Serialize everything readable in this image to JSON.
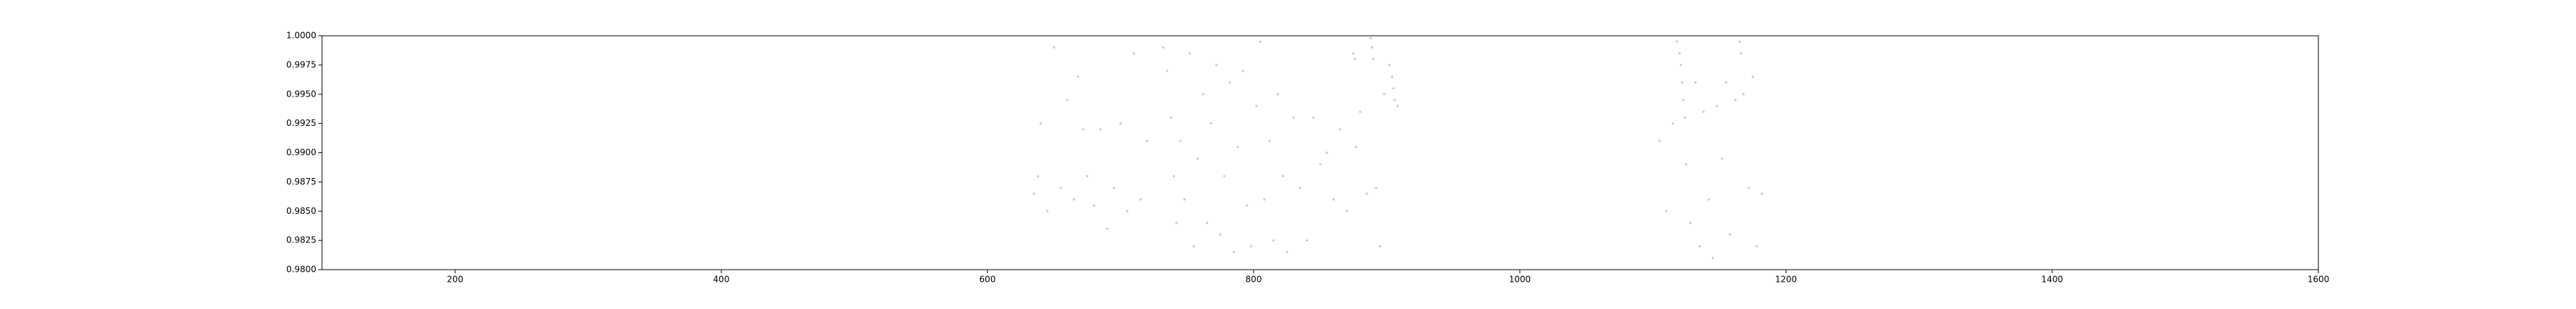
{
  "chart_data": {
    "type": "scatter",
    "color": "#1f77b4",
    "x": [
      635,
      638,
      640,
      645,
      650,
      655,
      660,
      665,
      668,
      672,
      675,
      680,
      685,
      690,
      695,
      700,
      705,
      710,
      715,
      720,
      732,
      735,
      738,
      740,
      742,
      745,
      748,
      752,
      755,
      758,
      762,
      765,
      768,
      772,
      775,
      778,
      782,
      785,
      788,
      792,
      795,
      798,
      802,
      805,
      808,
      812,
      815,
      818,
      822,
      825,
      830,
      835,
      840,
      845,
      850,
      855,
      860,
      865,
      870,
      875,
      876,
      877,
      880,
      885,
      888,
      889,
      890,
      892,
      895,
      898,
      902,
      904,
      905,
      906,
      908,
      1105,
      1110,
      1115,
      1118,
      1120,
      1121,
      1122,
      1123,
      1124,
      1125,
      1128,
      1132,
      1135,
      1138,
      1142,
      1145,
      1148,
      1152,
      1155,
      1158,
      1162,
      1165,
      1166,
      1168,
      1172,
      1175,
      1178,
      1182
    ],
    "values": [
      0.9865,
      0.988,
      0.9925,
      0.985,
      0.999,
      0.987,
      0.9945,
      0.986,
      0.9965,
      0.992,
      0.988,
      0.9855,
      0.992,
      0.9835,
      0.987,
      0.9925,
      0.985,
      0.9985,
      0.986,
      0.991,
      0.999,
      0.997,
      0.993,
      0.988,
      0.984,
      0.991,
      0.986,
      0.9985,
      0.982,
      0.9895,
      0.995,
      0.984,
      0.9925,
      0.9975,
      0.983,
      0.988,
      0.996,
      0.9815,
      0.9905,
      0.997,
      0.9855,
      0.982,
      0.994,
      0.9995,
      0.986,
      0.991,
      0.9825,
      0.995,
      0.988,
      0.9815,
      0.993,
      0.987,
      0.9825,
      0.993,
      0.989,
      0.99,
      0.986,
      0.992,
      0.985,
      0.9985,
      0.998,
      0.9905,
      0.9935,
      0.9865,
      0.9998,
      0.999,
      0.998,
      0.987,
      0.982,
      0.995,
      0.9975,
      0.9965,
      0.9955,
      0.9945,
      0.994,
      0.991,
      0.985,
      0.9925,
      0.9995,
      0.9985,
      0.9975,
      0.996,
      0.9945,
      0.993,
      0.989,
      0.984,
      0.996,
      0.982,
      0.9935,
      0.986,
      0.981,
      0.994,
      0.9895,
      0.996,
      0.983,
      0.9945,
      0.9995,
      0.9985,
      0.995,
      0.987,
      0.9965,
      0.982,
      0.9865
    ],
    "xlim": [
      100,
      1600
    ],
    "xticks": [
      200,
      400,
      600,
      800,
      1000,
      1200,
      1400,
      1600
    ],
    "ylim": [
      0.98,
      1.0
    ],
    "yticks": [
      {
        "value": 0.98,
        "label": "0.9800"
      },
      {
        "value": 0.9825,
        "label": "0.9825"
      },
      {
        "value": 0.985,
        "label": "0.9850"
      },
      {
        "value": 0.9875,
        "label": "0.9875"
      },
      {
        "value": 0.99,
        "label": "0.9900"
      },
      {
        "value": 0.9925,
        "label": "0.9925"
      },
      {
        "value": 0.995,
        "label": "0.9950"
      },
      {
        "value": 0.9975,
        "label": "0.9975"
      },
      {
        "value": 1.0,
        "label": "1.0000"
      }
    ],
    "grid": false
  }
}
